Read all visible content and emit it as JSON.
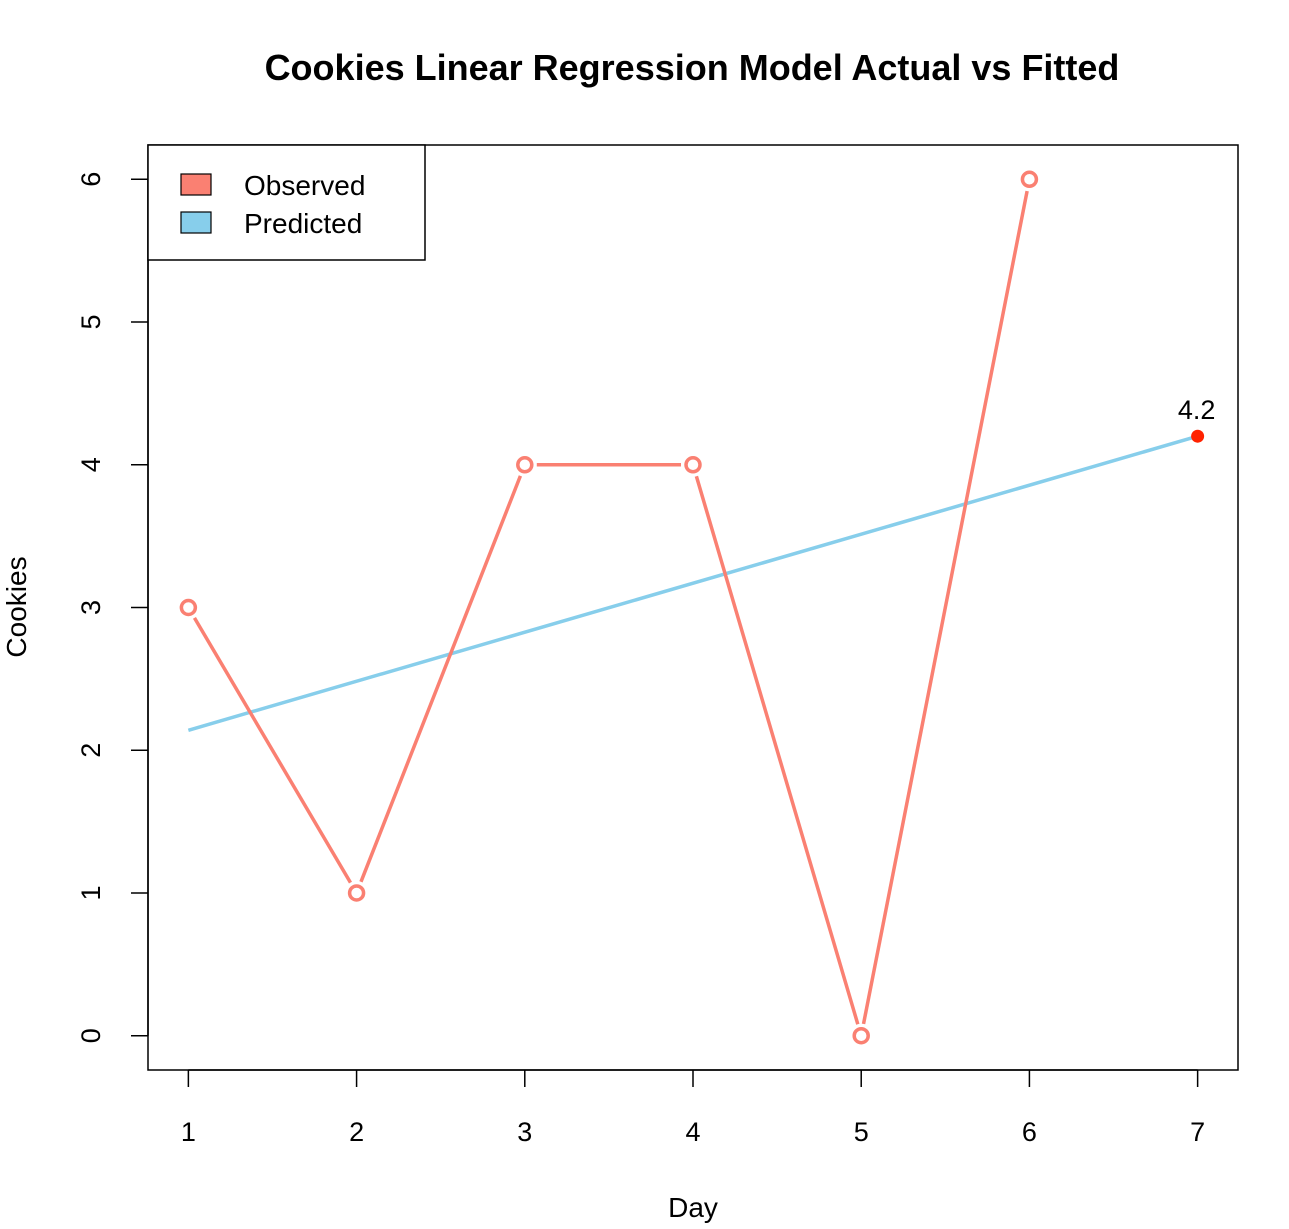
{
  "chart_data": {
    "type": "line",
    "title": "Cookies Linear Regression Model Actual vs Fitted",
    "xlabel": "Day",
    "ylabel": "Cookies",
    "xlim": [
      0.76,
      7.24
    ],
    "ylim": [
      -0.24,
      6.24
    ],
    "xticks": [
      1,
      2,
      3,
      4,
      5,
      6,
      7
    ],
    "yticks": [
      0,
      1,
      2,
      3,
      4,
      5,
      6
    ],
    "legend_position": "top-left",
    "grid": false,
    "series": [
      {
        "name": "Observed",
        "color": "#fa8072",
        "marker": "open-circle",
        "x": [
          1,
          2,
          3,
          4,
          5,
          6
        ],
        "y": [
          3,
          1,
          4,
          4,
          0,
          6
        ]
      },
      {
        "name": "Predicted",
        "color": "#87ceeb",
        "marker": "none",
        "x": [
          1,
          7
        ],
        "y": [
          2.14,
          4.2
        ]
      }
    ],
    "annotations": [
      {
        "x": 7,
        "y": 4.2,
        "text": "4.2",
        "color": "#ff2200",
        "marker": "filled-circle"
      }
    ]
  }
}
